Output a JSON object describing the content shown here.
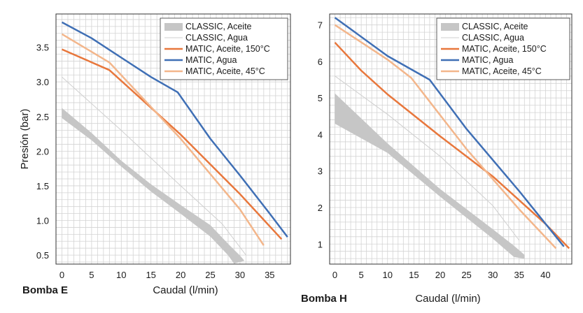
{
  "chart_data": [
    {
      "type": "line",
      "title": "Bomba E",
      "xlabel": "Caudal (l/min)",
      "ylabel": "Presión (bar)",
      "xlim": [
        -1,
        38.5
      ],
      "ylim": [
        0.37,
        3.98
      ],
      "x_ticks": [
        "0",
        "5",
        "10",
        "15",
        "20",
        "25",
        "30",
        "35"
      ],
      "y_ticks": [
        "0.5",
        "1.0",
        "1.5",
        "2.0",
        "2.5",
        "3.0",
        "3.5"
      ],
      "x_tick_values": [
        0,
        5,
        10,
        15,
        20,
        25,
        30,
        35
      ],
      "y_tick_values": [
        0.5,
        1.0,
        1.5,
        2.0,
        2.5,
        3.0,
        3.5
      ],
      "grid": true,
      "legend_position": "top-right",
      "legend": [
        "CLASSIC, Aceite",
        "CLASSIC, Agua",
        "MATIC, Aceite, 150°C",
        "MATIC, Agua",
        "MATIC, Aceite, 45°C"
      ],
      "bands": [
        {
          "name": "CLASSIC, Aceite",
          "color": "#c6c6c6",
          "upper": [
            [
              0,
              2.62
            ],
            [
              5,
              2.26
            ],
            [
              10,
              1.86
            ],
            [
              15,
              1.52
            ],
            [
              20,
              1.22
            ],
            [
              25,
              0.93
            ],
            [
              28,
              0.66
            ],
            [
              30,
              0.49
            ],
            [
              30.7,
              0.42
            ]
          ],
          "lower": [
            [
              0,
              2.48
            ],
            [
              5,
              2.16
            ],
            [
              10,
              1.78
            ],
            [
              15,
              1.42
            ],
            [
              20,
              1.1
            ],
            [
              25,
              0.77
            ],
            [
              28,
              0.5
            ],
            [
              29,
              0.38
            ],
            [
              30.7,
              0.42
            ]
          ]
        }
      ],
      "series": [
        {
          "name": "CLASSIC, Agua",
          "color": "#cfcfcf",
          "width": 1,
          "x": [
            0,
            10,
            20,
            27,
            31
          ],
          "y": [
            3.07,
            2.3,
            1.5,
            0.95,
            0.5
          ]
        },
        {
          "name": "MATIC, Aceite, 150°C",
          "color": "#e8773c",
          "width": 2.5,
          "x": [
            0,
            8,
            20,
            30,
            37
          ],
          "y": [
            3.47,
            3.17,
            2.24,
            1.38,
            0.73
          ]
        },
        {
          "name": "MATIC, Agua",
          "color": "#3f6fb5",
          "width": 2.5,
          "x": [
            0,
            5,
            10,
            15,
            19.5,
            25,
            30,
            35,
            38
          ],
          "y": [
            3.86,
            3.63,
            3.35,
            3.07,
            2.85,
            2.18,
            1.65,
            1.1,
            0.76
          ]
        },
        {
          "name": "MATIC, Aceite, 45°C",
          "color": "#f3b68b",
          "width": 2.5,
          "x": [
            0,
            8,
            20,
            30,
            34
          ],
          "y": [
            3.69,
            3.28,
            2.18,
            1.16,
            0.64
          ]
        }
      ]
    },
    {
      "type": "line",
      "title": "Bomba H",
      "xlabel": "Caudal (l/min)",
      "ylabel": "",
      "xlim": [
        -1,
        45
      ],
      "ylim": [
        0.45,
        7.3
      ],
      "x_ticks": [
        "0",
        "5",
        "10",
        "15",
        "20",
        "25",
        "30",
        "35",
        "40"
      ],
      "y_ticks": [
        "1",
        "2",
        "3",
        "4",
        "5",
        "6",
        "7"
      ],
      "x_tick_values": [
        0,
        5,
        10,
        15,
        20,
        25,
        30,
        35,
        40
      ],
      "y_tick_values": [
        1,
        2,
        3,
        4,
        5,
        6,
        7
      ],
      "grid": true,
      "legend_position": "top-right",
      "legend": [
        "CLASSIC, Aceite",
        "CLASSIC, Agua",
        "MATIC, Aceite, 150°C",
        "MATIC, Agua",
        "MATIC, Aceite, 45°C"
      ],
      "bands": [
        {
          "name": "CLASSIC, Aceite",
          "color": "#c6c6c6",
          "upper": [
            [
              0,
              5.12
            ],
            [
              10,
              3.75
            ],
            [
              20,
              2.5
            ],
            [
              30,
              1.4
            ],
            [
              34,
              0.95
            ],
            [
              36,
              0.7
            ]
          ],
          "lower": [
            [
              0,
              4.3
            ],
            [
              10,
              3.5
            ],
            [
              20,
              2.3
            ],
            [
              30,
              1.15
            ],
            [
              34,
              0.65
            ],
            [
              36,
              0.6
            ]
          ]
        }
      ],
      "series": [
        {
          "name": "CLASSIC, Agua",
          "color": "#cfcfcf",
          "width": 1,
          "x": [
            0,
            10,
            20,
            30,
            35
          ],
          "y": [
            5.6,
            4.55,
            3.4,
            2.05,
            1.1
          ]
        },
        {
          "name": "MATIC, Aceite, 150°C",
          "color": "#e8773c",
          "width": 2.5,
          "x": [
            0,
            5,
            10,
            20,
            30,
            40,
            44.5
          ],
          "y": [
            6.52,
            5.75,
            5.1,
            3.95,
            2.85,
            1.55,
            0.88
          ]
        },
        {
          "name": "MATIC, Agua",
          "color": "#3f6fb5",
          "width": 2.5,
          "x": [
            0,
            10,
            18,
            25,
            35,
            43.5
          ],
          "y": [
            7.2,
            6.15,
            5.5,
            4.15,
            2.45,
            0.93
          ]
        },
        {
          "name": "MATIC, Aceite, 45°C",
          "color": "#f3b68b",
          "width": 2.5,
          "x": [
            0,
            10,
            14.5,
            25,
            35,
            42
          ],
          "y": [
            7.0,
            6.05,
            5.55,
            3.6,
            1.95,
            0.88
          ]
        }
      ]
    }
  ]
}
